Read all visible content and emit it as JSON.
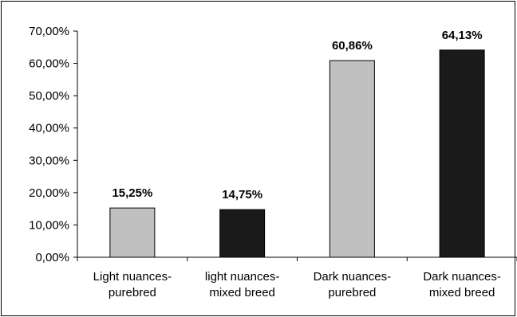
{
  "chart_data": {
    "type": "bar",
    "categories": [
      [
        "Light nuances-",
        "purebred"
      ],
      [
        "light nuances-",
        "mixed breed"
      ],
      [
        "Dark nuances-",
        "purebred"
      ],
      [
        "Dark nuances-",
        "mixed breed"
      ]
    ],
    "values": [
      15.25,
      14.75,
      60.86,
      64.13
    ],
    "data_labels": [
      "15,25%",
      "14,75%",
      "60,86%",
      "64,13%"
    ],
    "bar_colors": [
      "#c0c0c0",
      "#1a1a1a",
      "#c0c0c0",
      "#1a1a1a"
    ],
    "title": "",
    "xlabel": "",
    "ylabel": "",
    "ylim": [
      0,
      70
    ],
    "yticks": [
      0,
      10,
      20,
      30,
      40,
      50,
      60,
      70
    ],
    "ytick_labels": [
      "0,00%",
      "10,00%",
      "20,00%",
      "30,00%",
      "40,00%",
      "50,00%",
      "60,00%",
      "70,00%"
    ],
    "grid": false,
    "legend": "none"
  }
}
